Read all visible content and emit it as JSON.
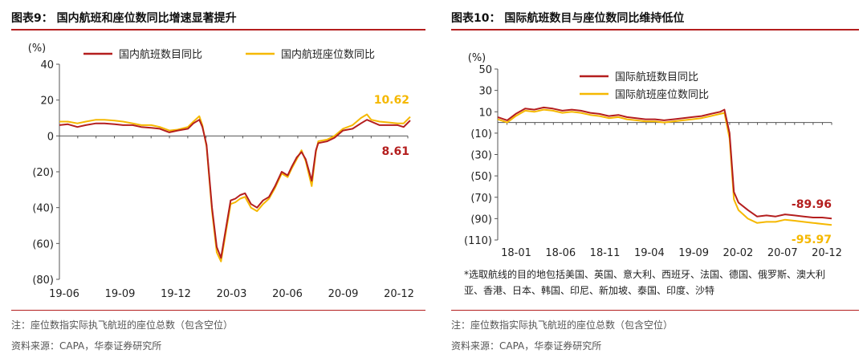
{
  "left": {
    "title": "图表9： 国内航班和座位数同比增速显著提升",
    "note": "注：座位数指实际执飞航班的座位总数（包含空位）",
    "source": "资料来源：CAPA，华泰证券研究所"
  },
  "right": {
    "title": "图表10： 国际航班数目与座位数同比维持低位",
    "footnote": "*选取航线的目的地包括美国、英国、意大利、西班牙、法国、德国、俄罗斯、澳大利亚、香港、日本、韩国、印尼、新加坡、泰国、印度、沙特",
    "note": "注：座位数指实际执飞航班的座位总数（包含空位）",
    "source": "资料来源：CAPA，华泰证券研究所"
  },
  "colors": {
    "red": "#b41e1e",
    "gold": "#f5b800",
    "accent_red_label": "#b41e1e",
    "accent_gold_label": "#f5b800"
  },
  "chart_data": [
    {
      "type": "line",
      "unit_label": "(%)",
      "ylim": [
        -80,
        40
      ],
      "yticks": [
        40,
        20,
        0,
        -20,
        -40,
        -60,
        -80
      ],
      "ytick_labels": [
        "40",
        "20",
        "0",
        "(20)",
        "(40)",
        "(60)",
        "(80)"
      ],
      "x_start": "2019-06",
      "x_end": "2021-01",
      "x_tick_labels": [
        "19-06",
        "19-09",
        "19-12",
        "20-03",
        "20-06",
        "20-09",
        "20-12"
      ],
      "legend_position": "top",
      "series": [
        {
          "name": "国内航班数目同比",
          "color": "#b41e1e",
          "points": [
            [
              "2019-06-01",
              6
            ],
            [
              "2019-06-15",
              6.5
            ],
            [
              "2019-07-01",
              5
            ],
            [
              "2019-07-15",
              6
            ],
            [
              "2019-08-01",
              7
            ],
            [
              "2019-08-15",
              7
            ],
            [
              "2019-09-01",
              6.5
            ],
            [
              "2019-09-15",
              6
            ],
            [
              "2019-10-01",
              6
            ],
            [
              "2019-10-15",
              5
            ],
            [
              "2019-11-01",
              4.5
            ],
            [
              "2019-11-15",
              4
            ],
            [
              "2019-12-01",
              2
            ],
            [
              "2019-12-15",
              3
            ],
            [
              "2020-01-01",
              4
            ],
            [
              "2020-01-10",
              7
            ],
            [
              "2020-01-20",
              9
            ],
            [
              "2020-01-25",
              5
            ],
            [
              "2020-02-01",
              -5
            ],
            [
              "2020-02-10",
              -40
            ],
            [
              "2020-02-18",
              -62
            ],
            [
              "2020-02-25",
              -68
            ],
            [
              "2020-03-05",
              -50
            ],
            [
              "2020-03-12",
              -36
            ],
            [
              "2020-03-20",
              -35
            ],
            [
              "2020-03-28",
              -33
            ],
            [
              "2020-04-05",
              -32
            ],
            [
              "2020-04-15",
              -38
            ],
            [
              "2020-04-25",
              -40
            ],
            [
              "2020-05-05",
              -36
            ],
            [
              "2020-05-15",
              -34
            ],
            [
              "2020-05-25",
              -28
            ],
            [
              "2020-06-05",
              -20
            ],
            [
              "2020-06-15",
              -22
            ],
            [
              "2020-06-22",
              -17
            ],
            [
              "2020-06-30",
              -12
            ],
            [
              "2020-07-08",
              -9
            ],
            [
              "2020-07-15",
              -13
            ],
            [
              "2020-07-25",
              -25
            ],
            [
              "2020-08-01",
              -8
            ],
            [
              "2020-08-05",
              -4
            ],
            [
              "2020-08-20",
              -3
            ],
            [
              "2020-09-01",
              -1
            ],
            [
              "2020-09-15",
              3
            ],
            [
              "2020-10-01",
              4
            ],
            [
              "2020-10-15",
              7
            ],
            [
              "2020-10-25",
              9
            ],
            [
              "2020-11-01",
              8
            ],
            [
              "2020-11-15",
              6
            ],
            [
              "2020-12-01",
              6
            ],
            [
              "2020-12-15",
              6
            ],
            [
              "2020-12-25",
              5
            ],
            [
              "2021-01-05",
              8.61
            ]
          ],
          "end_label": "8.61"
        },
        {
          "name": "国内航班座位数同比",
          "color": "#f5b800",
          "points": [
            [
              "2019-06-01",
              8
            ],
            [
              "2019-06-15",
              8
            ],
            [
              "2019-07-01",
              7
            ],
            [
              "2019-07-15",
              8
            ],
            [
              "2019-08-01",
              9
            ],
            [
              "2019-08-15",
              9
            ],
            [
              "2019-09-01",
              8.5
            ],
            [
              "2019-09-15",
              8
            ],
            [
              "2019-10-01",
              7
            ],
            [
              "2019-10-15",
              6
            ],
            [
              "2019-11-01",
              6
            ],
            [
              "2019-11-15",
              5
            ],
            [
              "2019-12-01",
              3
            ],
            [
              "2019-12-15",
              3.5
            ],
            [
              "2020-01-01",
              5
            ],
            [
              "2020-01-10",
              8
            ],
            [
              "2020-01-20",
              11
            ],
            [
              "2020-01-25",
              6
            ],
            [
              "2020-02-01",
              -6
            ],
            [
              "2020-02-10",
              -42
            ],
            [
              "2020-02-18",
              -65
            ],
            [
              "2020-02-25",
              -70
            ],
            [
              "2020-03-05",
              -52
            ],
            [
              "2020-03-12",
              -38
            ],
            [
              "2020-03-20",
              -37
            ],
            [
              "2020-03-28",
              -35
            ],
            [
              "2020-04-05",
              -34
            ],
            [
              "2020-04-15",
              -40
            ],
            [
              "2020-04-25",
              -42
            ],
            [
              "2020-05-05",
              -38
            ],
            [
              "2020-05-15",
              -35
            ],
            [
              "2020-05-25",
              -29
            ],
            [
              "2020-06-05",
              -21
            ],
            [
              "2020-06-15",
              -23
            ],
            [
              "2020-06-22",
              -18
            ],
            [
              "2020-06-30",
              -13
            ],
            [
              "2020-07-08",
              -8
            ],
            [
              "2020-07-15",
              -14
            ],
            [
              "2020-07-25",
              -28
            ],
            [
              "2020-08-01",
              -9
            ],
            [
              "2020-08-05",
              -3
            ],
            [
              "2020-08-20",
              -2
            ],
            [
              "2020-09-01",
              0
            ],
            [
              "2020-09-15",
              4
            ],
            [
              "2020-10-01",
              6
            ],
            [
              "2020-10-15",
              10
            ],
            [
              "2020-10-25",
              12
            ],
            [
              "2020-11-01",
              9
            ],
            [
              "2020-11-15",
              8
            ],
            [
              "2020-12-01",
              7.5
            ],
            [
              "2020-12-15",
              7
            ],
            [
              "2020-12-25",
              7
            ],
            [
              "2021-01-05",
              10.62
            ]
          ],
          "end_label": "10.62"
        }
      ]
    },
    {
      "type": "line",
      "unit_label": "(%)",
      "ylim": [
        -110,
        50
      ],
      "yticks": [
        50,
        30,
        10,
        -10,
        -30,
        -50,
        -70,
        -90,
        -110
      ],
      "ytick_labels": [
        "50",
        "30",
        "10",
        "(10)",
        "(30)",
        "(50)",
        "(70)",
        "(90)",
        "(110)"
      ],
      "x_start": "2018-01",
      "x_end": "2021-01",
      "x_tick_labels": [
        "18-01",
        "18-06",
        "18-11",
        "19-04",
        "19-09",
        "20-02",
        "20-07",
        "20-12"
      ],
      "legend_position": "top",
      "series": [
        {
          "name": "国际航班数目同比",
          "color": "#b41e1e",
          "points": [
            [
              "2018-01-01",
              5
            ],
            [
              "2018-02-01",
              2
            ],
            [
              "2018-03-01",
              8
            ],
            [
              "2018-04-01",
              13
            ],
            [
              "2018-05-01",
              12
            ],
            [
              "2018-06-01",
              14
            ],
            [
              "2018-07-01",
              13
            ],
            [
              "2018-08-01",
              11
            ],
            [
              "2018-09-01",
              12
            ],
            [
              "2018-10-01",
              11
            ],
            [
              "2018-11-01",
              9
            ],
            [
              "2018-12-01",
              8
            ],
            [
              "2019-01-01",
              6
            ],
            [
              "2019-02-01",
              7
            ],
            [
              "2019-03-01",
              5
            ],
            [
              "2019-04-01",
              4
            ],
            [
              "2019-05-01",
              3
            ],
            [
              "2019-06-01",
              3
            ],
            [
              "2019-07-01",
              2
            ],
            [
              "2019-08-01",
              3
            ],
            [
              "2019-09-01",
              4
            ],
            [
              "2019-10-01",
              5
            ],
            [
              "2019-11-01",
              6
            ],
            [
              "2019-12-01",
              8
            ],
            [
              "2020-01-01",
              10
            ],
            [
              "2020-01-15",
              12
            ],
            [
              "2020-02-01",
              -10
            ],
            [
              "2020-02-15",
              -65
            ],
            [
              "2020-03-01",
              -75
            ],
            [
              "2020-04-01",
              -82
            ],
            [
              "2020-05-01",
              -88
            ],
            [
              "2020-06-01",
              -87
            ],
            [
              "2020-07-01",
              -88
            ],
            [
              "2020-08-01",
              -86
            ],
            [
              "2020-09-01",
              -87
            ],
            [
              "2020-10-01",
              -88
            ],
            [
              "2020-11-01",
              -89
            ],
            [
              "2020-12-01",
              -89
            ],
            [
              "2021-01-01",
              -89.96
            ]
          ],
          "end_label": "-89.96"
        },
        {
          "name": "国际航班座位数同比",
          "color": "#f5b800",
          "points": [
            [
              "2018-01-01",
              3
            ],
            [
              "2018-02-01",
              0
            ],
            [
              "2018-03-01",
              6
            ],
            [
              "2018-04-01",
              11
            ],
            [
              "2018-05-01",
              10
            ],
            [
              "2018-06-01",
              12
            ],
            [
              "2018-07-01",
              11
            ],
            [
              "2018-08-01",
              9
            ],
            [
              "2018-09-01",
              10
            ],
            [
              "2018-10-01",
              9
            ],
            [
              "2018-11-01",
              7
            ],
            [
              "2018-12-01",
              6
            ],
            [
              "2019-01-01",
              4
            ],
            [
              "2019-02-01",
              5
            ],
            [
              "2019-03-01",
              3
            ],
            [
              "2019-04-01",
              2
            ],
            [
              "2019-05-01",
              1
            ],
            [
              "2019-06-01",
              1
            ],
            [
              "2019-07-01",
              0
            ],
            [
              "2019-08-01",
              1
            ],
            [
              "2019-09-01",
              2
            ],
            [
              "2019-10-01",
              3
            ],
            [
              "2019-11-01",
              4
            ],
            [
              "2019-12-01",
              6
            ],
            [
              "2020-01-01",
              8
            ],
            [
              "2020-01-15",
              9
            ],
            [
              "2020-02-01",
              -15
            ],
            [
              "2020-02-15",
              -72
            ],
            [
              "2020-03-01",
              -82
            ],
            [
              "2020-04-01",
              -90
            ],
            [
              "2020-05-01",
              -94
            ],
            [
              "2020-06-01",
              -93
            ],
            [
              "2020-07-01",
              -93
            ],
            [
              "2020-08-01",
              -91
            ],
            [
              "2020-09-01",
              -92
            ],
            [
              "2020-10-01",
              -93
            ],
            [
              "2020-11-01",
              -94
            ],
            [
              "2020-12-01",
              -95
            ],
            [
              "2021-01-01",
              -95.97
            ]
          ],
          "end_label": "-95.97"
        }
      ]
    }
  ]
}
